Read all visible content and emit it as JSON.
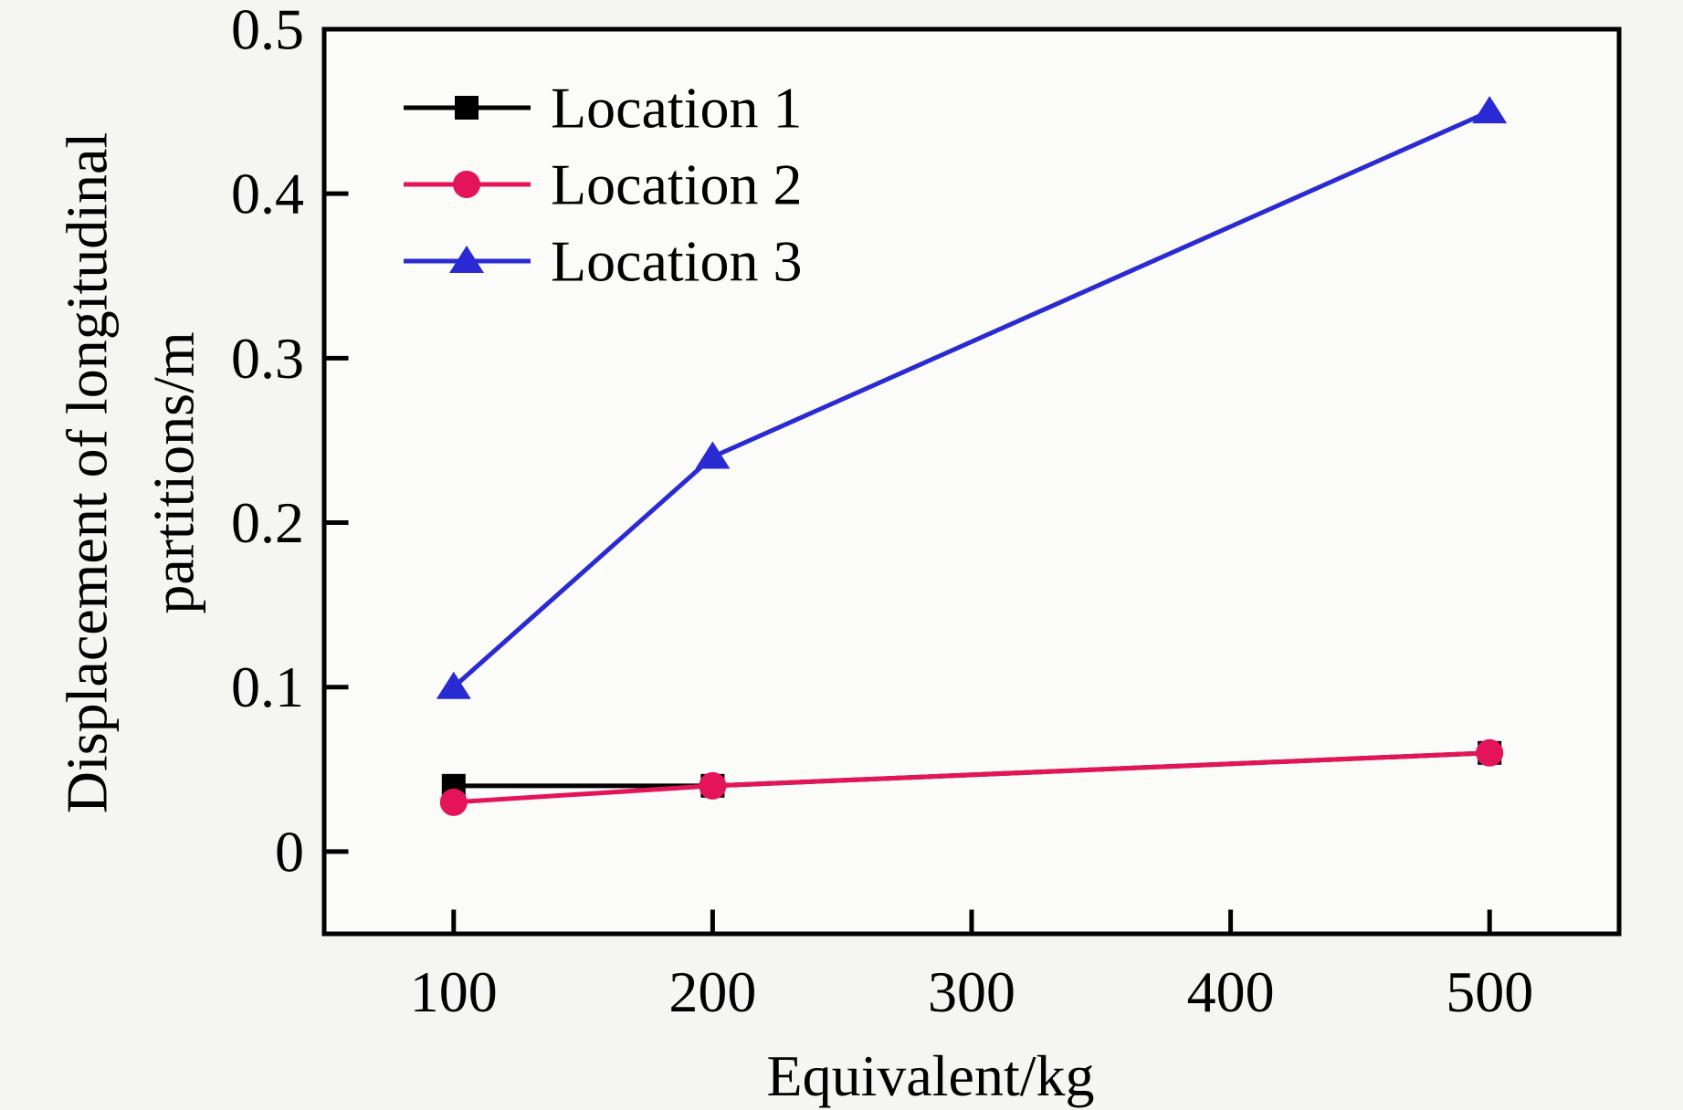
{
  "chart_data": {
    "type": "line",
    "x": [
      100,
      200,
      500
    ],
    "series": [
      {
        "name": "Location 1",
        "values": [
          0.04,
          0.04,
          0.06
        ],
        "color": "#000000",
        "marker": "square"
      },
      {
        "name": "Location 2",
        "values": [
          0.03,
          0.04,
          0.06
        ],
        "color": "#e4145a",
        "marker": "circle"
      },
      {
        "name": "Location 3",
        "values": [
          0.1,
          0.24,
          0.45
        ],
        "color": "#2a2ad2",
        "marker": "triangle"
      }
    ],
    "title": "",
    "xlabel": "Equivalent/kg",
    "ylabel": "Displacement of longitudinal partitions/m",
    "ylabel_lines": [
      "Displacement of longitudinal",
      "partitions/m"
    ],
    "xlim": [
      50,
      550
    ],
    "ylim": [
      -0.05,
      0.5
    ],
    "xticks": [
      100,
      200,
      300,
      400,
      500
    ],
    "yticks": [
      0,
      0.1,
      0.2,
      0.3,
      0.4,
      0.5
    ],
    "grid": false,
    "legend_position": "upper-left",
    "legend": [
      "Location 1",
      "Location 2",
      "Location 3"
    ],
    "background": "#f5f5f2",
    "plot_background": "#fbfbf9",
    "axis_color": "#000000",
    "text_color": "#000000"
  }
}
